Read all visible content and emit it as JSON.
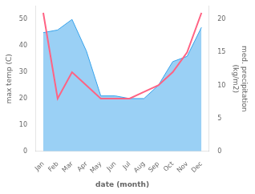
{
  "chart_data": {
    "type": "line",
    "categories": [
      "Jan",
      "Feb",
      "Mar",
      "Apr",
      "May",
      "Jun",
      "Jul",
      "Aug",
      "Sep",
      "Oct",
      "Nov",
      "Dec"
    ],
    "xlabel": "date (month)",
    "ylabel": "max temp (C)",
    "y2label": "med. precipitation\n(kg/m2)",
    "series": [
      {
        "type": "area",
        "values": [
          45,
          46,
          50,
          38,
          21,
          21,
          20,
          20,
          25,
          34,
          36,
          47
        ]
      },
      {
        "type": "line",
        "axis": "y2",
        "values": [
          21,
          8,
          12,
          10,
          8,
          8,
          8,
          9,
          10,
          12,
          15,
          21
        ]
      }
    ],
    "ylim": [
      0,
      55
    ],
    "yticks": [
      0,
      10,
      20,
      30,
      40,
      50
    ],
    "y2lim": [
      0,
      22
    ],
    "y2ticks": [
      0,
      5,
      10,
      15,
      20
    ],
    "grid": false
  }
}
